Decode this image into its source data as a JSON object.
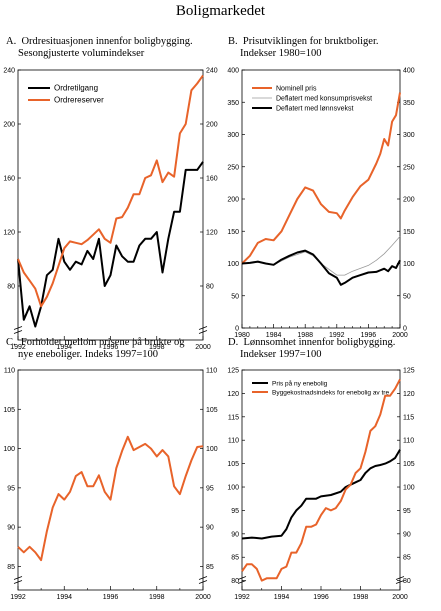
{
  "page_title": "Boligmarkedet",
  "panels": [
    {
      "letter": "A.",
      "title_lines": [
        "Ordresituasjonen innenfor boligbygging.",
        "Sesongjusterte volumindekser"
      ]
    },
    {
      "letter": "B.",
      "title_lines": [
        "Prisutviklingen for bruktboliger.",
        "Indekser 1980=100"
      ]
    },
    {
      "letter": "C.",
      "title_lines": [
        "Forholdet mellom prisene på brukte og",
        "nye eneboliger. Indeks 1997=100"
      ]
    },
    {
      "letter": "D.",
      "title_lines": [
        "Lønnsomhet innenfor boligbygging.",
        "Indekser 1997=100"
      ]
    }
  ],
  "colors": {
    "orange": "#e8632a",
    "black": "#000000",
    "gray": "#9a9a9a"
  },
  "chart_data": [
    {
      "type": "line",
      "xlim": [
        1992,
        2000
      ],
      "ylim": [
        40,
        240
      ],
      "xticks": [
        1992,
        1994,
        1996,
        1998,
        2000
      ],
      "yticks": [
        80,
        120,
        160,
        200,
        240
      ],
      "axis_break": true,
      "grid": false,
      "legend": "top-left",
      "series": [
        {
          "name": "Ordretilgang",
          "color": "#000000",
          "x": [
            1992,
            1992.25,
            1992.5,
            1992.75,
            1993,
            1993.25,
            1993.5,
            1993.75,
            1994,
            1994.25,
            1994.5,
            1994.75,
            1995,
            1995.25,
            1995.5,
            1995.75,
            1996,
            1996.25,
            1996.5,
            1996.75,
            1997,
            1997.25,
            1997.5,
            1997.75,
            1998,
            1998.25,
            1998.5,
            1998.75,
            1999,
            1999.25,
            1999.5,
            1999.75,
            2000
          ],
          "values": [
            100,
            55,
            65,
            50,
            65,
            88,
            92,
            115,
            98,
            92,
            98,
            96,
            106,
            100,
            115,
            80,
            88,
            110,
            102,
            98,
            98,
            110,
            115,
            115,
            120,
            90,
            115,
            135,
            135,
            166,
            166,
            166,
            172
          ]
        },
        {
          "name": "Ordrereserver",
          "color": "#e8632a",
          "x": [
            1992,
            1992.25,
            1992.5,
            1992.75,
            1993,
            1993.25,
            1993.5,
            1993.75,
            1994,
            1994.25,
            1994.5,
            1994.75,
            1995,
            1995.25,
            1995.5,
            1995.75,
            1996,
            1996.25,
            1996.5,
            1996.75,
            1997,
            1997.25,
            1997.5,
            1997.75,
            1998,
            1998.25,
            1998.5,
            1998.75,
            1999,
            1999.25,
            1999.5,
            1999.75,
            2000
          ],
          "values": [
            100,
            90,
            84,
            78,
            65,
            72,
            82,
            95,
            108,
            113,
            112,
            111,
            114,
            118,
            122,
            115,
            112,
            130,
            131,
            138,
            148,
            148,
            160,
            162,
            173,
            157,
            164,
            161,
            193,
            200,
            225,
            230,
            236
          ]
        }
      ]
    },
    {
      "type": "line",
      "xlim": [
        1980,
        2000
      ],
      "ylim": [
        0,
        400
      ],
      "xticks": [
        1980,
        1984,
        1988,
        1992,
        1996,
        2000
      ],
      "yticks": [
        0,
        50,
        100,
        150,
        200,
        250,
        300,
        350,
        400
      ],
      "grid": false,
      "legend": "top-left",
      "series": [
        {
          "name": "Nominell pris",
          "color": "#e8632a",
          "x": [
            1980,
            1981,
            1982,
            1983,
            1984,
            1985,
            1986,
            1987,
            1988,
            1989,
            1990,
            1991,
            1992,
            1992.5,
            1993,
            1994,
            1995,
            1996,
            1997,
            1997.5,
            1998,
            1998.5,
            1999,
            1999.5,
            2000
          ],
          "values": [
            100,
            112,
            132,
            138,
            136,
            150,
            175,
            200,
            218,
            213,
            192,
            180,
            178,
            170,
            182,
            203,
            220,
            230,
            255,
            270,
            293,
            283,
            320,
            330,
            365
          ]
        },
        {
          "name": "Deflatert med konsumprisvekst",
          "color": "#9a9a9a",
          "x": [
            1980,
            1982,
            1984,
            1986,
            1988,
            1989,
            1990,
            1992,
            1993,
            1994,
            1996,
            1997,
            1998,
            1999,
            2000
          ],
          "values": [
            100,
            102,
            98,
            110,
            118,
            112,
            100,
            82,
            82,
            88,
            97,
            105,
            115,
            128,
            142
          ]
        },
        {
          "name": "Deflatert med lønnsvekst",
          "color": "#000000",
          "x": [
            1980,
            1981,
            1982,
            1983,
            1984,
            1985,
            1986,
            1987,
            1988,
            1989,
            1990,
            1991,
            1992,
            1992.5,
            1993,
            1994,
            1995,
            1996,
            1997,
            1998,
            1998.5,
            1999,
            1999.5,
            2000
          ],
          "values": [
            100,
            101,
            103,
            100,
            98,
            106,
            112,
            117,
            120,
            114,
            100,
            85,
            78,
            67,
            70,
            78,
            82,
            86,
            87,
            92,
            88,
            96,
            93,
            105
          ]
        }
      ]
    },
    {
      "type": "line",
      "xlim": [
        1992,
        2000
      ],
      "ylim": [
        82,
        110
      ],
      "xticks": [
        1992,
        1994,
        1996,
        1998,
        2000
      ],
      "yticks": [
        85,
        90,
        95,
        100,
        105,
        110
      ],
      "axis_break": true,
      "grid": false,
      "series": [
        {
          "color": "#e8632a",
          "x": [
            1992,
            1992.25,
            1992.5,
            1992.75,
            1993,
            1993.25,
            1993.5,
            1993.75,
            1994,
            1994.25,
            1994.5,
            1994.75,
            1995,
            1995.25,
            1995.5,
            1995.75,
            1996,
            1996.25,
            1996.5,
            1996.75,
            1997,
            1997.25,
            1997.5,
            1997.75,
            1998,
            1998.25,
            1998.5,
            1998.75,
            1999,
            1999.25,
            1999.5,
            1999.75,
            2000
          ],
          "values": [
            87.5,
            86.8,
            87.5,
            86.8,
            85.8,
            89.5,
            92.5,
            94.2,
            93.5,
            94.5,
            96.5,
            97,
            95.2,
            95.2,
            96.6,
            94.5,
            93.5,
            97.5,
            99.7,
            101.5,
            99.8,
            100.2,
            100.6,
            100,
            99,
            99.8,
            99,
            95.2,
            94.2,
            96.5,
            98.5,
            100.2,
            100.3
          ]
        }
      ]
    },
    {
      "type": "line",
      "xlim": [
        1992,
        2000
      ],
      "ylim": [
        78,
        125
      ],
      "xticks": [
        1992,
        1994,
        1996,
        1998,
        2000
      ],
      "yticks": [
        80,
        85,
        90,
        95,
        100,
        105,
        110,
        115,
        120,
        125
      ],
      "axis_break": true,
      "grid": false,
      "legend": "top-left",
      "series": [
        {
          "name": "Pris på ny enebolig",
          "color": "#000000",
          "x": [
            1992,
            1992.5,
            1993,
            1993.5,
            1994,
            1994.25,
            1994.5,
            1994.75,
            1995,
            1995.25,
            1995.5,
            1995.75,
            1996,
            1996.5,
            1997,
            1997.25,
            1997.5,
            1997.75,
            1998,
            1998.25,
            1998.5,
            1998.75,
            1999,
            1999.25,
            1999.5,
            1999.75,
            2000
          ],
          "values": [
            89,
            89.2,
            89,
            89.4,
            89.6,
            91,
            93.5,
            95,
            96,
            97.5,
            97.5,
            97.5,
            98,
            98.3,
            99,
            100,
            100.5,
            101,
            101.5,
            103,
            104,
            104.5,
            104.7,
            105,
            105.5,
            106.2,
            108
          ]
        },
        {
          "name": "Byggekostnadsindeks for enebolig av tre",
          "color": "#e8632a",
          "x": [
            1992,
            1992.25,
            1992.5,
            1992.75,
            1993,
            1993.25,
            1993.5,
            1993.75,
            1994,
            1994.25,
            1994.5,
            1994.75,
            1995,
            1995.25,
            1995.5,
            1995.75,
            1996,
            1996.25,
            1996.5,
            1996.75,
            1997,
            1997.25,
            1997.5,
            1997.75,
            1998,
            1998.25,
            1998.5,
            1998.75,
            1999,
            1999.25,
            1999.5,
            1999.75,
            2000
          ],
          "values": [
            82,
            83.5,
            83.5,
            82.5,
            80,
            80.5,
            80.5,
            80.5,
            82.5,
            83,
            86,
            86,
            88,
            91.5,
            91.5,
            92,
            94,
            95.5,
            95,
            95.5,
            97,
            99.5,
            100.5,
            103,
            104,
            107.5,
            112,
            113,
            115.5,
            119.5,
            119.5,
            121,
            123
          ]
        }
      ]
    }
  ]
}
